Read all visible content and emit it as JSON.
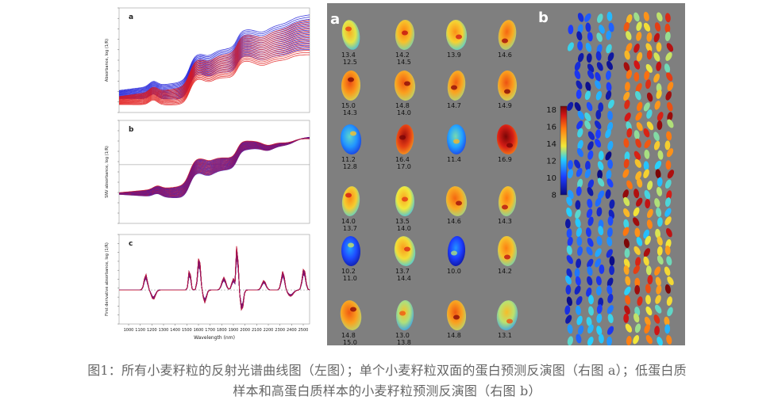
{
  "caption": {
    "line1": "图1：所有小麦籽粒的反射光谱曲线图（左图）；单个小麦籽粒双面的蛋白预测反演图（右图 a）；低蛋白质",
    "line2": "样本和高蛋白质样本的小麦籽粒预测反演图（右图 b）"
  },
  "spectra_panels": {
    "a": {
      "label": "a",
      "ylabel": "Absorbance, log (1/R)"
    },
    "b": {
      "label": "b",
      "ylabel": "SNV absorbance, log (1/R)"
    },
    "c": {
      "label": "c",
      "ylabel": "First derivative absorbance, log (1/R)"
    },
    "xlabel": "Wavelength (nm)",
    "xticks": [
      "1000",
      "1100",
      "1200",
      "1300",
      "1400",
      "1500",
      "1600",
      "1700",
      "1800",
      "1900",
      "2000",
      "2100",
      "2200",
      "2300",
      "2400",
      "2500"
    ]
  },
  "kernel_panel": {
    "label_a": "a",
    "label_b": "b",
    "colorbar_ticks": [
      "18",
      "16",
      "14",
      "12",
      "10",
      "8"
    ],
    "colors": {
      "low": "#08108c",
      "mid": "#f2e83a",
      "high": "#8c0a0a"
    },
    "kernels": [
      {
        "labels": [
          "13.4",
          "12.5"
        ]
      },
      {
        "labels": [
          "14.2",
          "14.5"
        ]
      },
      {
        "labels": [
          "13.9"
        ]
      },
      {
        "labels": [
          "14.6"
        ]
      },
      {
        "labels": [
          "15.0",
          "14.3"
        ]
      },
      {
        "labels": [
          "14.8",
          "14.0"
        ]
      },
      {
        "labels": [
          "14.7"
        ]
      },
      {
        "labels": [
          "14.9"
        ]
      },
      {
        "labels": [
          "11.2",
          "12.8"
        ]
      },
      {
        "labels": [
          "16.4",
          "17.0"
        ]
      },
      {
        "labels": [
          "11.4"
        ]
      },
      {
        "labels": [
          "16.9"
        ]
      },
      {
        "labels": [
          "14.0",
          "13.7"
        ]
      },
      {
        "labels": [
          "13.5",
          "14.0"
        ]
      },
      {
        "labels": [
          "14.6"
        ]
      },
      {
        "labels": [
          "14.3"
        ]
      },
      {
        "labels": [
          "10.2",
          "11.0"
        ]
      },
      {
        "labels": [
          "13.7",
          "14.4"
        ]
      },
      {
        "labels": [
          "10.0"
        ]
      },
      {
        "labels": [
          "14.2"
        ]
      },
      {
        "labels": [
          "14.8",
          "15.0"
        ]
      },
      {
        "labels": [
          "13.0",
          "13.8"
        ]
      },
      {
        "labels": [
          "14.8"
        ]
      },
      {
        "labels": [
          "13.1"
        ]
      }
    ]
  }
}
